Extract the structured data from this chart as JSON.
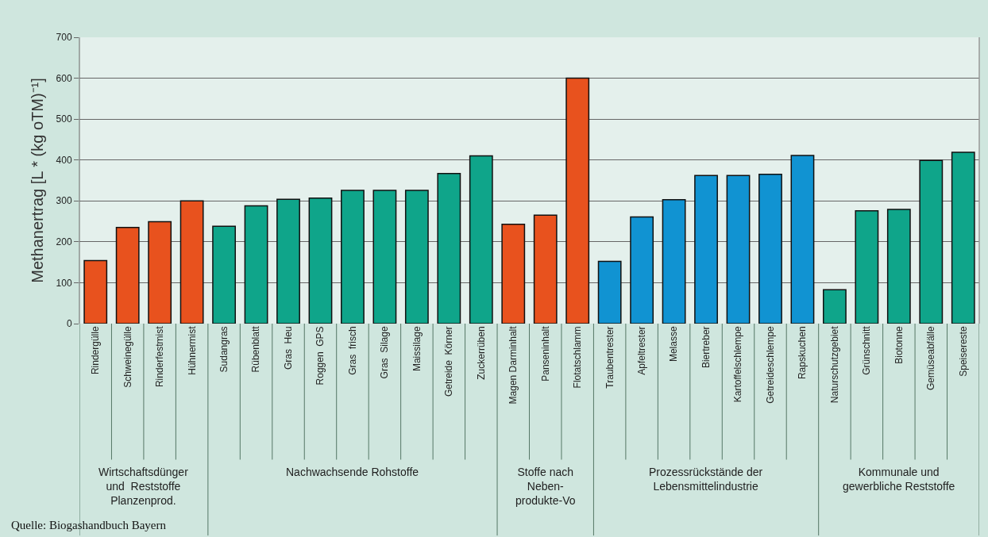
{
  "chart_data": {
    "type": "bar",
    "ylabel": "Methanertrag [L * (kg oTM)⁻¹]",
    "categories": [
      "Rindergülle",
      "Schweinegülle",
      "Rinderfestmist",
      "Hühnermist",
      "Sudangras",
      "Rübenblatt",
      "Gras  Heu",
      "Roggen  GPS",
      "Gras  frisch",
      "Gras  Silage",
      "Maissilage",
      "Getreide  Körner",
      "Zuckerrüben",
      "Magen Darminhalt",
      "Panseninhalt",
      "Flotatschlamm",
      "Traubentrester",
      "Apfeltrester",
      "Melasse",
      "Biertreber",
      "Kartoffelschlempe",
      "Getreideschlempe",
      "Rapskuchen",
      "Naturschutzgebiet",
      "Grünschnitt",
      "Biotonne",
      "Gemüseabfälle",
      "Speisereste"
    ],
    "values": [
      154,
      235,
      249,
      300,
      238,
      288,
      304,
      307,
      326,
      326,
      326,
      367,
      410,
      243,
      265,
      600,
      152,
      261,
      303,
      362,
      362,
      365,
      411,
      83,
      276,
      279,
      399,
      419
    ],
    "colors": [
      "#e8521e",
      "#e8521e",
      "#e8521e",
      "#e8521e",
      "#0fa58a",
      "#0fa58a",
      "#0fa58a",
      "#0fa58a",
      "#0fa58a",
      "#0fa58a",
      "#0fa58a",
      "#0fa58a",
      "#0fa58a",
      "#e8521e",
      "#e8521e",
      "#e8521e",
      "#1193d2",
      "#1193d2",
      "#1193d2",
      "#1193d2",
      "#1193d2",
      "#1193d2",
      "#1193d2",
      "#0fa58a",
      "#0fa58a",
      "#0fa58a",
      "#0fa58a",
      "#0fa58a"
    ],
    "ylim": [
      0,
      700
    ],
    "yticks": [
      0,
      100,
      200,
      300,
      400,
      500,
      600,
      700
    ],
    "grid": "y",
    "annotations": [
      "Wirtschaftsdünger\nund  Reststoffe\nPlanzenprod.",
      "Nachwachsende Rohstoffe",
      "Stoffe nach\nNeben-\nprodukte-Vo",
      "Prozessrückstände der\nLebensmittelindustrie",
      "Kommunale und\ngewerbliche Reststoffe",
      "Quelle: Biogashandbuch Bayern"
    ]
  }
}
